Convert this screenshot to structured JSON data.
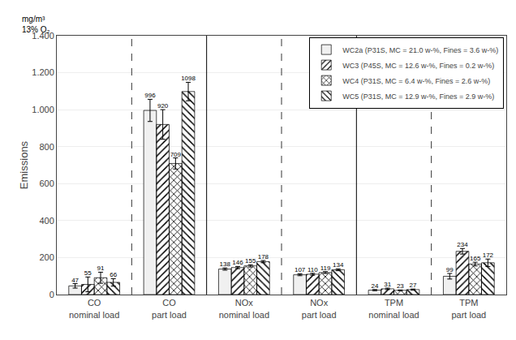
{
  "chart_data": {
    "type": "bar",
    "ylabel": "Emissions",
    "annotations": [
      "mg/m³\n13% O₂"
    ],
    "categories": [
      "CO\nnominal load",
      "CO\npart load",
      "NOx\nnominal load",
      "NOx\npart load",
      "TPM\nnominal load",
      "TPM\npart load"
    ],
    "series": [
      {
        "name": "WC2a (P31S, MC = 21.0 w-%, Fines = 3.6 w-%)",
        "color": "#f0f0f0",
        "values": [
          47,
          996,
          138,
          107,
          24,
          99
        ],
        "errors_up": [
          12,
          60,
          6,
          5,
          3,
          15
        ],
        "errors_down": [
          12,
          60,
          6,
          5,
          3,
          15
        ]
      },
      {
        "name": "WC3 (P45S, MC = 12.6 w-%, Fines = 0.2 w-%)",
        "color": "#d0d0d0",
        "values": [
          55,
          920,
          146,
          110,
          31,
          234
        ],
        "errors_up": [
          40,
          80,
          6,
          5,
          4,
          15
        ],
        "errors_down": [
          40,
          80,
          6,
          5,
          4,
          15
        ]
      },
      {
        "name": "WC4 (P31S, MC = 6.4 w-%, Fines = 2.6 w-%)",
        "color": "#b0b0b0",
        "values": [
          91,
          709,
          155,
          119,
          23,
          165
        ],
        "errors_up": [
          30,
          30,
          6,
          5,
          2,
          10
        ],
        "errors_down": [
          30,
          30,
          6,
          5,
          2,
          10
        ]
      },
      {
        "name": "WC5 (P31S, MC = 12.9 w-%, Fines = 2.9 w-%)",
        "color": "#888888",
        "values": [
          66,
          1098,
          178,
          134,
          27,
          172
        ],
        "errors_up": [
          20,
          50,
          6,
          5,
          3,
          20
        ],
        "errors_down": [
          20,
          50,
          6,
          5,
          3,
          20
        ]
      }
    ],
    "ylim": [
      0,
      1400
    ],
    "yticks": [
      0,
      200,
      400,
      600,
      800,
      {
        "value": 1000,
        "label": "1.000"
      },
      {
        "value": 1200,
        "label": "1.200"
      },
      {
        "value": 1400,
        "label": "1.400"
      }
    ],
    "grid": true,
    "legend": "upper right",
    "data_labels": true
  }
}
